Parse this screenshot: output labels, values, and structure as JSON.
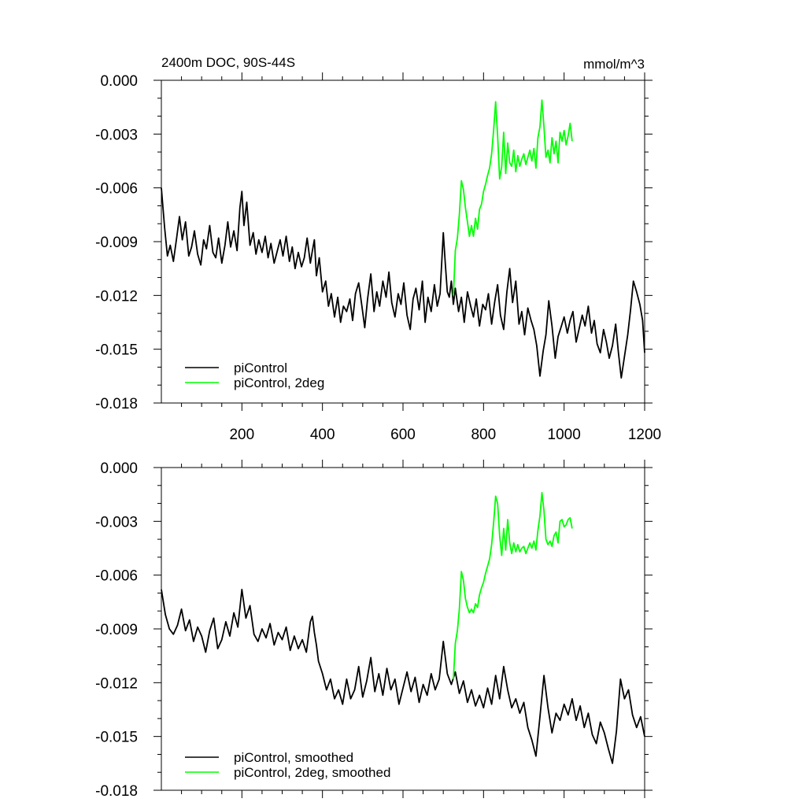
{
  "chart_data": [
    {
      "type": "line",
      "title": "2400m DOC, 90S-44S",
      "units": "mmol/m^3",
      "xlabel": "",
      "ylabel": "",
      "xlim": [
        0,
        1200
      ],
      "ylim": [
        -0.018,
        0.0
      ],
      "x_ticks": [
        200,
        400,
        600,
        800,
        1000,
        1200
      ],
      "x_tick_labels": [
        "200",
        "400",
        "600",
        "800",
        "1000",
        "1200"
      ],
      "y_ticks": [
        0.0,
        -0.003,
        -0.006,
        -0.009,
        -0.012,
        -0.015,
        -0.018
      ],
      "y_tick_labels": [
        "0.000",
        "-0.003",
        "-0.006",
        "-0.009",
        "-0.012",
        "-0.015",
        "-0.018"
      ],
      "legend_position": "bottom-left",
      "series": [
        {
          "name": "piControl",
          "color": "#000000",
          "x": [
            0,
            8,
            15,
            22,
            30,
            38,
            45,
            52,
            60,
            68,
            75,
            82,
            90,
            98,
            105,
            112,
            120,
            128,
            135,
            142,
            150,
            158,
            165,
            172,
            180,
            188,
            195,
            200,
            205,
            212,
            220,
            228,
            235,
            242,
            250,
            258,
            265,
            272,
            280,
            288,
            295,
            302,
            310,
            318,
            325,
            332,
            340,
            348,
            355,
            362,
            370,
            375,
            380,
            385,
            392,
            400,
            408,
            415,
            422,
            430,
            438,
            445,
            452,
            460,
            468,
            475,
            482,
            490,
            498,
            505,
            512,
            520,
            528,
            535,
            542,
            550,
            558,
            565,
            572,
            580,
            588,
            595,
            602,
            610,
            618,
            625,
            632,
            640,
            648,
            655,
            662,
            670,
            678,
            685,
            692,
            700,
            705,
            710,
            715,
            720,
            725,
            730,
            738,
            745,
            752,
            760,
            768,
            775,
            782,
            790,
            798,
            805,
            812,
            820,
            828,
            835,
            842,
            850,
            858,
            865,
            872,
            880,
            888,
            895,
            902,
            910,
            918,
            925,
            932,
            940,
            948,
            955,
            962,
            970,
            978,
            985,
            992,
            1000,
            1008,
            1015,
            1022,
            1030,
            1038,
            1045,
            1052,
            1060,
            1068,
            1075,
            1082,
            1090,
            1098,
            1105,
            1112,
            1120,
            1128,
            1135,
            1142,
            1150,
            1158,
            1165,
            1172,
            1180,
            1188,
            1195,
            1200
          ],
          "y": [
            -0.006,
            -0.0082,
            -0.0098,
            -0.0092,
            -0.0101,
            -0.0088,
            -0.0076,
            -0.0089,
            -0.0079,
            -0.0098,
            -0.0093,
            -0.0084,
            -0.0097,
            -0.0103,
            -0.0089,
            -0.0094,
            -0.0081,
            -0.0096,
            -0.0099,
            -0.0088,
            -0.0102,
            -0.0092,
            -0.0079,
            -0.0093,
            -0.0084,
            -0.0095,
            -0.0071,
            -0.0062,
            -0.0081,
            -0.0068,
            -0.0092,
            -0.0085,
            -0.0097,
            -0.0089,
            -0.0096,
            -0.0087,
            -0.0099,
            -0.0091,
            -0.0102,
            -0.0095,
            -0.0089,
            -0.0098,
            -0.0087,
            -0.0101,
            -0.0093,
            -0.0105,
            -0.0096,
            -0.0104,
            -0.0099,
            -0.0088,
            -0.0102,
            -0.0095,
            -0.0089,
            -0.0109,
            -0.0099,
            -0.0118,
            -0.0112,
            -0.0126,
            -0.0119,
            -0.0132,
            -0.0121,
            -0.0135,
            -0.0126,
            -0.0129,
            -0.0122,
            -0.0134,
            -0.0119,
            -0.0113,
            -0.0126,
            -0.0138,
            -0.0122,
            -0.0108,
            -0.0129,
            -0.0118,
            -0.0126,
            -0.0112,
            -0.0121,
            -0.0107,
            -0.0124,
            -0.0132,
            -0.0119,
            -0.0125,
            -0.0113,
            -0.0131,
            -0.0139,
            -0.0122,
            -0.0116,
            -0.0128,
            -0.0112,
            -0.0135,
            -0.0121,
            -0.0129,
            -0.0114,
            -0.0126,
            -0.0119,
            -0.0085,
            -0.0102,
            -0.0118,
            -0.0121,
            -0.0112,
            -0.0125,
            -0.0116,
            -0.0129,
            -0.0121,
            -0.0135,
            -0.0118,
            -0.0126,
            -0.0132,
            -0.0122,
            -0.0137,
            -0.0125,
            -0.0128,
            -0.0119,
            -0.0136,
            -0.0123,
            -0.0114,
            -0.0131,
            -0.0139,
            -0.0118,
            -0.0105,
            -0.0124,
            -0.0112,
            -0.0136,
            -0.0129,
            -0.0142,
            -0.0127,
            -0.0134,
            -0.0139,
            -0.0148,
            -0.0165,
            -0.0151,
            -0.0142,
            -0.0123,
            -0.0137,
            -0.0155,
            -0.0143,
            -0.0138,
            -0.0132,
            -0.0141,
            -0.0134,
            -0.0129,
            -0.0146,
            -0.0138,
            -0.0131,
            -0.0137,
            -0.0126,
            -0.0141,
            -0.0134,
            -0.0147,
            -0.0152,
            -0.0139,
            -0.0146,
            -0.0155,
            -0.0148,
            -0.0136,
            -0.0152,
            -0.0166,
            -0.0154,
            -0.0142,
            -0.0128,
            -0.0112,
            -0.0118,
            -0.0125,
            -0.0134,
            -0.0152
          ],
          "data_labels": []
        },
        {
          "name": "piControl, 2deg",
          "color": "#00ff00",
          "x": [
            725,
            730,
            735,
            740,
            745,
            750,
            755,
            760,
            765,
            770,
            775,
            780,
            785,
            790,
            795,
            800,
            805,
            810,
            815,
            820,
            825,
            830,
            835,
            840,
            845,
            850,
            855,
            860,
            865,
            870,
            875,
            880,
            885,
            890,
            895,
            900,
            905,
            910,
            915,
            920,
            925,
            930,
            935,
            940,
            945,
            950,
            955,
            960,
            965,
            970,
            975,
            980,
            985,
            990,
            995,
            1000,
            1005,
            1010,
            1015,
            1020
          ],
          "y": [
            -0.012,
            -0.0095,
            -0.0088,
            -0.0075,
            -0.0056,
            -0.0061,
            -0.0071,
            -0.0079,
            -0.0087,
            -0.0081,
            -0.0087,
            -0.0077,
            -0.0083,
            -0.0072,
            -0.0069,
            -0.0062,
            -0.0058,
            -0.0053,
            -0.0049,
            -0.0041,
            -0.0028,
            -0.0012,
            -0.0031,
            -0.0055,
            -0.0048,
            -0.0029,
            -0.0052,
            -0.0035,
            -0.0046,
            -0.0048,
            -0.0039,
            -0.0051,
            -0.0042,
            -0.0048,
            -0.0044,
            -0.0041,
            -0.0047,
            -0.0043,
            -0.0039,
            -0.0045,
            -0.0038,
            -0.0049,
            -0.0032,
            -0.0026,
            -0.0011,
            -0.0026,
            -0.0043,
            -0.0039,
            -0.0046,
            -0.0032,
            -0.0041,
            -0.0034,
            -0.0046,
            -0.0029,
            -0.0034,
            -0.0028,
            -0.0036,
            -0.0031,
            -0.0024,
            -0.0034
          ],
          "data_labels": []
        }
      ]
    },
    {
      "type": "line",
      "title": "",
      "units": "",
      "xlabel": "",
      "ylabel": "",
      "xlim": [
        0,
        1200
      ],
      "ylim": [
        -0.018,
        0.0
      ],
      "x_ticks": [
        200,
        400,
        600,
        800,
        1000,
        1200
      ],
      "x_tick_labels": [],
      "y_ticks": [
        0.0,
        -0.003,
        -0.006,
        -0.009,
        -0.012,
        -0.015,
        -0.018
      ],
      "y_tick_labels": [
        "0.000",
        "-0.003",
        "-0.006",
        "-0.009",
        "-0.012",
        "-0.015",
        "-0.018"
      ],
      "legend_position": "bottom-left",
      "series": [
        {
          "name": "piControl, smoothed",
          "color": "#000000",
          "x": [
            0,
            10,
            20,
            30,
            40,
            50,
            60,
            70,
            80,
            90,
            100,
            110,
            120,
            130,
            140,
            150,
            160,
            170,
            180,
            190,
            200,
            210,
            220,
            230,
            240,
            250,
            260,
            270,
            280,
            290,
            300,
            310,
            320,
            330,
            340,
            350,
            360,
            370,
            375,
            380,
            385,
            390,
            400,
            410,
            420,
            430,
            440,
            450,
            460,
            470,
            480,
            490,
            500,
            510,
            520,
            530,
            540,
            550,
            560,
            570,
            580,
            590,
            600,
            610,
            620,
            630,
            640,
            650,
            660,
            670,
            680,
            690,
            700,
            710,
            720,
            730,
            740,
            750,
            760,
            770,
            780,
            790,
            800,
            810,
            820,
            830,
            840,
            850,
            860,
            870,
            880,
            890,
            900,
            910,
            920,
            930,
            940,
            950,
            960,
            970,
            980,
            990,
            1000,
            1010,
            1020,
            1030,
            1040,
            1050,
            1060,
            1070,
            1080,
            1090,
            1100,
            1110,
            1120,
            1130,
            1140,
            1150,
            1160,
            1170,
            1180,
            1190,
            1200
          ],
          "y": [
            -0.0068,
            -0.0082,
            -0.009,
            -0.0093,
            -0.0088,
            -0.0079,
            -0.0091,
            -0.0085,
            -0.0097,
            -0.0089,
            -0.0094,
            -0.0103,
            -0.0091,
            -0.0084,
            -0.0101,
            -0.0096,
            -0.0086,
            -0.0094,
            -0.0081,
            -0.0089,
            -0.0068,
            -0.0084,
            -0.0077,
            -0.0093,
            -0.0097,
            -0.009,
            -0.0095,
            -0.0087,
            -0.0099,
            -0.0092,
            -0.0096,
            -0.0089,
            -0.0102,
            -0.0094,
            -0.0101,
            -0.0096,
            -0.0103,
            -0.0086,
            -0.0083,
            -0.0092,
            -0.0099,
            -0.0108,
            -0.0115,
            -0.0124,
            -0.0118,
            -0.0129,
            -0.0124,
            -0.0132,
            -0.0118,
            -0.0129,
            -0.0124,
            -0.0111,
            -0.0128,
            -0.0119,
            -0.0106,
            -0.0125,
            -0.0115,
            -0.0127,
            -0.0112,
            -0.0124,
            -0.0118,
            -0.0132,
            -0.0123,
            -0.0114,
            -0.0125,
            -0.0117,
            -0.0131,
            -0.0121,
            -0.0127,
            -0.0115,
            -0.0124,
            -0.0118,
            -0.0097,
            -0.0115,
            -0.0121,
            -0.0114,
            -0.0126,
            -0.0119,
            -0.0131,
            -0.0124,
            -0.0133,
            -0.0127,
            -0.0134,
            -0.0123,
            -0.0132,
            -0.0116,
            -0.0129,
            -0.0111,
            -0.0124,
            -0.0134,
            -0.0129,
            -0.0137,
            -0.0131,
            -0.0145,
            -0.0152,
            -0.0161,
            -0.0139,
            -0.0116,
            -0.0134,
            -0.0148,
            -0.0137,
            -0.0141,
            -0.0132,
            -0.0138,
            -0.0129,
            -0.0141,
            -0.0133,
            -0.0145,
            -0.0137,
            -0.0149,
            -0.0154,
            -0.0142,
            -0.0148,
            -0.0157,
            -0.0165,
            -0.0147,
            -0.0118,
            -0.0129,
            -0.0124,
            -0.0138,
            -0.0145,
            -0.0139,
            -0.015
          ],
          "data_labels": []
        },
        {
          "name": "piControl, 2deg, smoothed",
          "color": "#00ff00",
          "x": [
            725,
            730,
            735,
            740,
            745,
            750,
            755,
            760,
            765,
            770,
            775,
            780,
            785,
            790,
            795,
            800,
            805,
            810,
            815,
            820,
            825,
            830,
            835,
            840,
            845,
            850,
            855,
            860,
            865,
            870,
            875,
            880,
            885,
            890,
            895,
            900,
            905,
            910,
            915,
            920,
            925,
            930,
            935,
            940,
            945,
            950,
            955,
            960,
            965,
            970,
            975,
            980,
            985,
            990,
            995,
            1000,
            1005,
            1010,
            1015,
            1020
          ],
          "y": [
            -0.0118,
            -0.0098,
            -0.0091,
            -0.0079,
            -0.0058,
            -0.0063,
            -0.0073,
            -0.0078,
            -0.0081,
            -0.0079,
            -0.0081,
            -0.0076,
            -0.0078,
            -0.0071,
            -0.0067,
            -0.0064,
            -0.0059,
            -0.0055,
            -0.0051,
            -0.0043,
            -0.0031,
            -0.0016,
            -0.002,
            -0.0038,
            -0.0049,
            -0.0034,
            -0.0046,
            -0.0029,
            -0.0042,
            -0.0048,
            -0.0042,
            -0.0047,
            -0.0043,
            -0.0047,
            -0.0045,
            -0.0044,
            -0.0048,
            -0.0045,
            -0.0042,
            -0.0045,
            -0.0041,
            -0.0046,
            -0.0035,
            -0.0027,
            -0.0014,
            -0.0024,
            -0.004,
            -0.0043,
            -0.0041,
            -0.0044,
            -0.0038,
            -0.0036,
            -0.0042,
            -0.003,
            -0.0029,
            -0.0033,
            -0.0032,
            -0.0029,
            -0.0028,
            -0.0034
          ],
          "data_labels": []
        }
      ]
    }
  ]
}
